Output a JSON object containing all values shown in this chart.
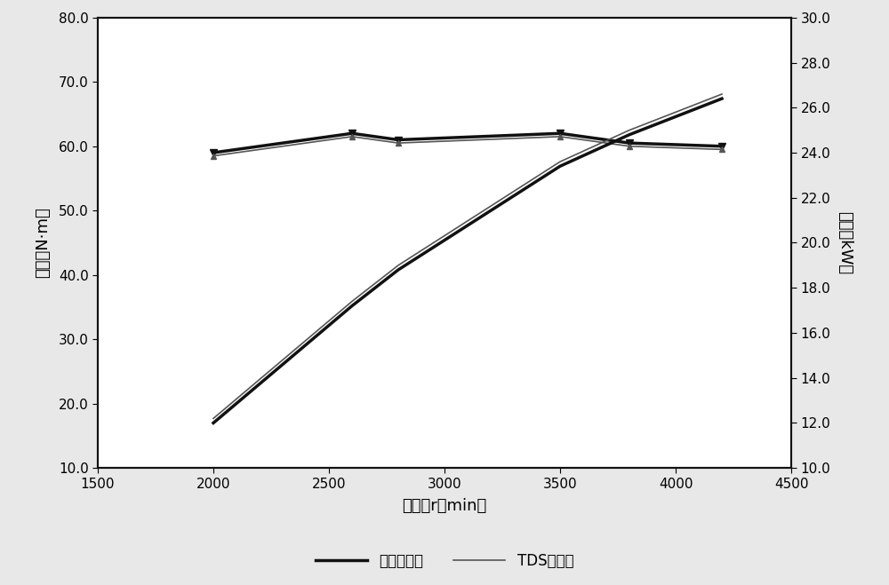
{
  "x_rpm": [
    2000,
    2600,
    2800,
    3500,
    3800,
    4200
  ],
  "torque_ref": [
    59.0,
    62.0,
    61.0,
    62.0,
    60.5,
    60.0
  ],
  "torque_tds": [
    58.5,
    61.5,
    60.5,
    61.5,
    60.0,
    59.5
  ],
  "power_ref": [
    12.0,
    17.2,
    18.8,
    23.4,
    24.8,
    26.4
  ],
  "power_tds": [
    12.2,
    17.4,
    19.0,
    23.6,
    25.0,
    26.6
  ],
  "xlim": [
    1500,
    4500
  ],
  "xticks": [
    1500,
    2000,
    2500,
    3000,
    3500,
    4000,
    4500
  ],
  "ylim_left": [
    10.0,
    80.0
  ],
  "yticks_left": [
    10.0,
    20.0,
    30.0,
    40.0,
    50.0,
    60.0,
    70.0,
    80.0
  ],
  "ylim_right": [
    10.0,
    30.0
  ],
  "yticks_right": [
    10.0,
    12.0,
    14.0,
    16.0,
    18.0,
    20.0,
    22.0,
    24.0,
    26.0,
    28.0,
    30.0
  ],
  "xlabel": "转速（r／min）",
  "ylabel_left": "扭矩（N·m）",
  "ylabel_right": "功率（kW）",
  "legend_ref": "参比润滑油",
  "legend_tds": "TDS润滑油",
  "color_ref": "#111111",
  "color_tds": "#555555",
  "bg_color": "#e8e8e8",
  "plot_bg": "#ffffff",
  "marker_ref": "v",
  "marker_tds": "^",
  "lw_ref": 2.5,
  "lw_tds": 1.2
}
